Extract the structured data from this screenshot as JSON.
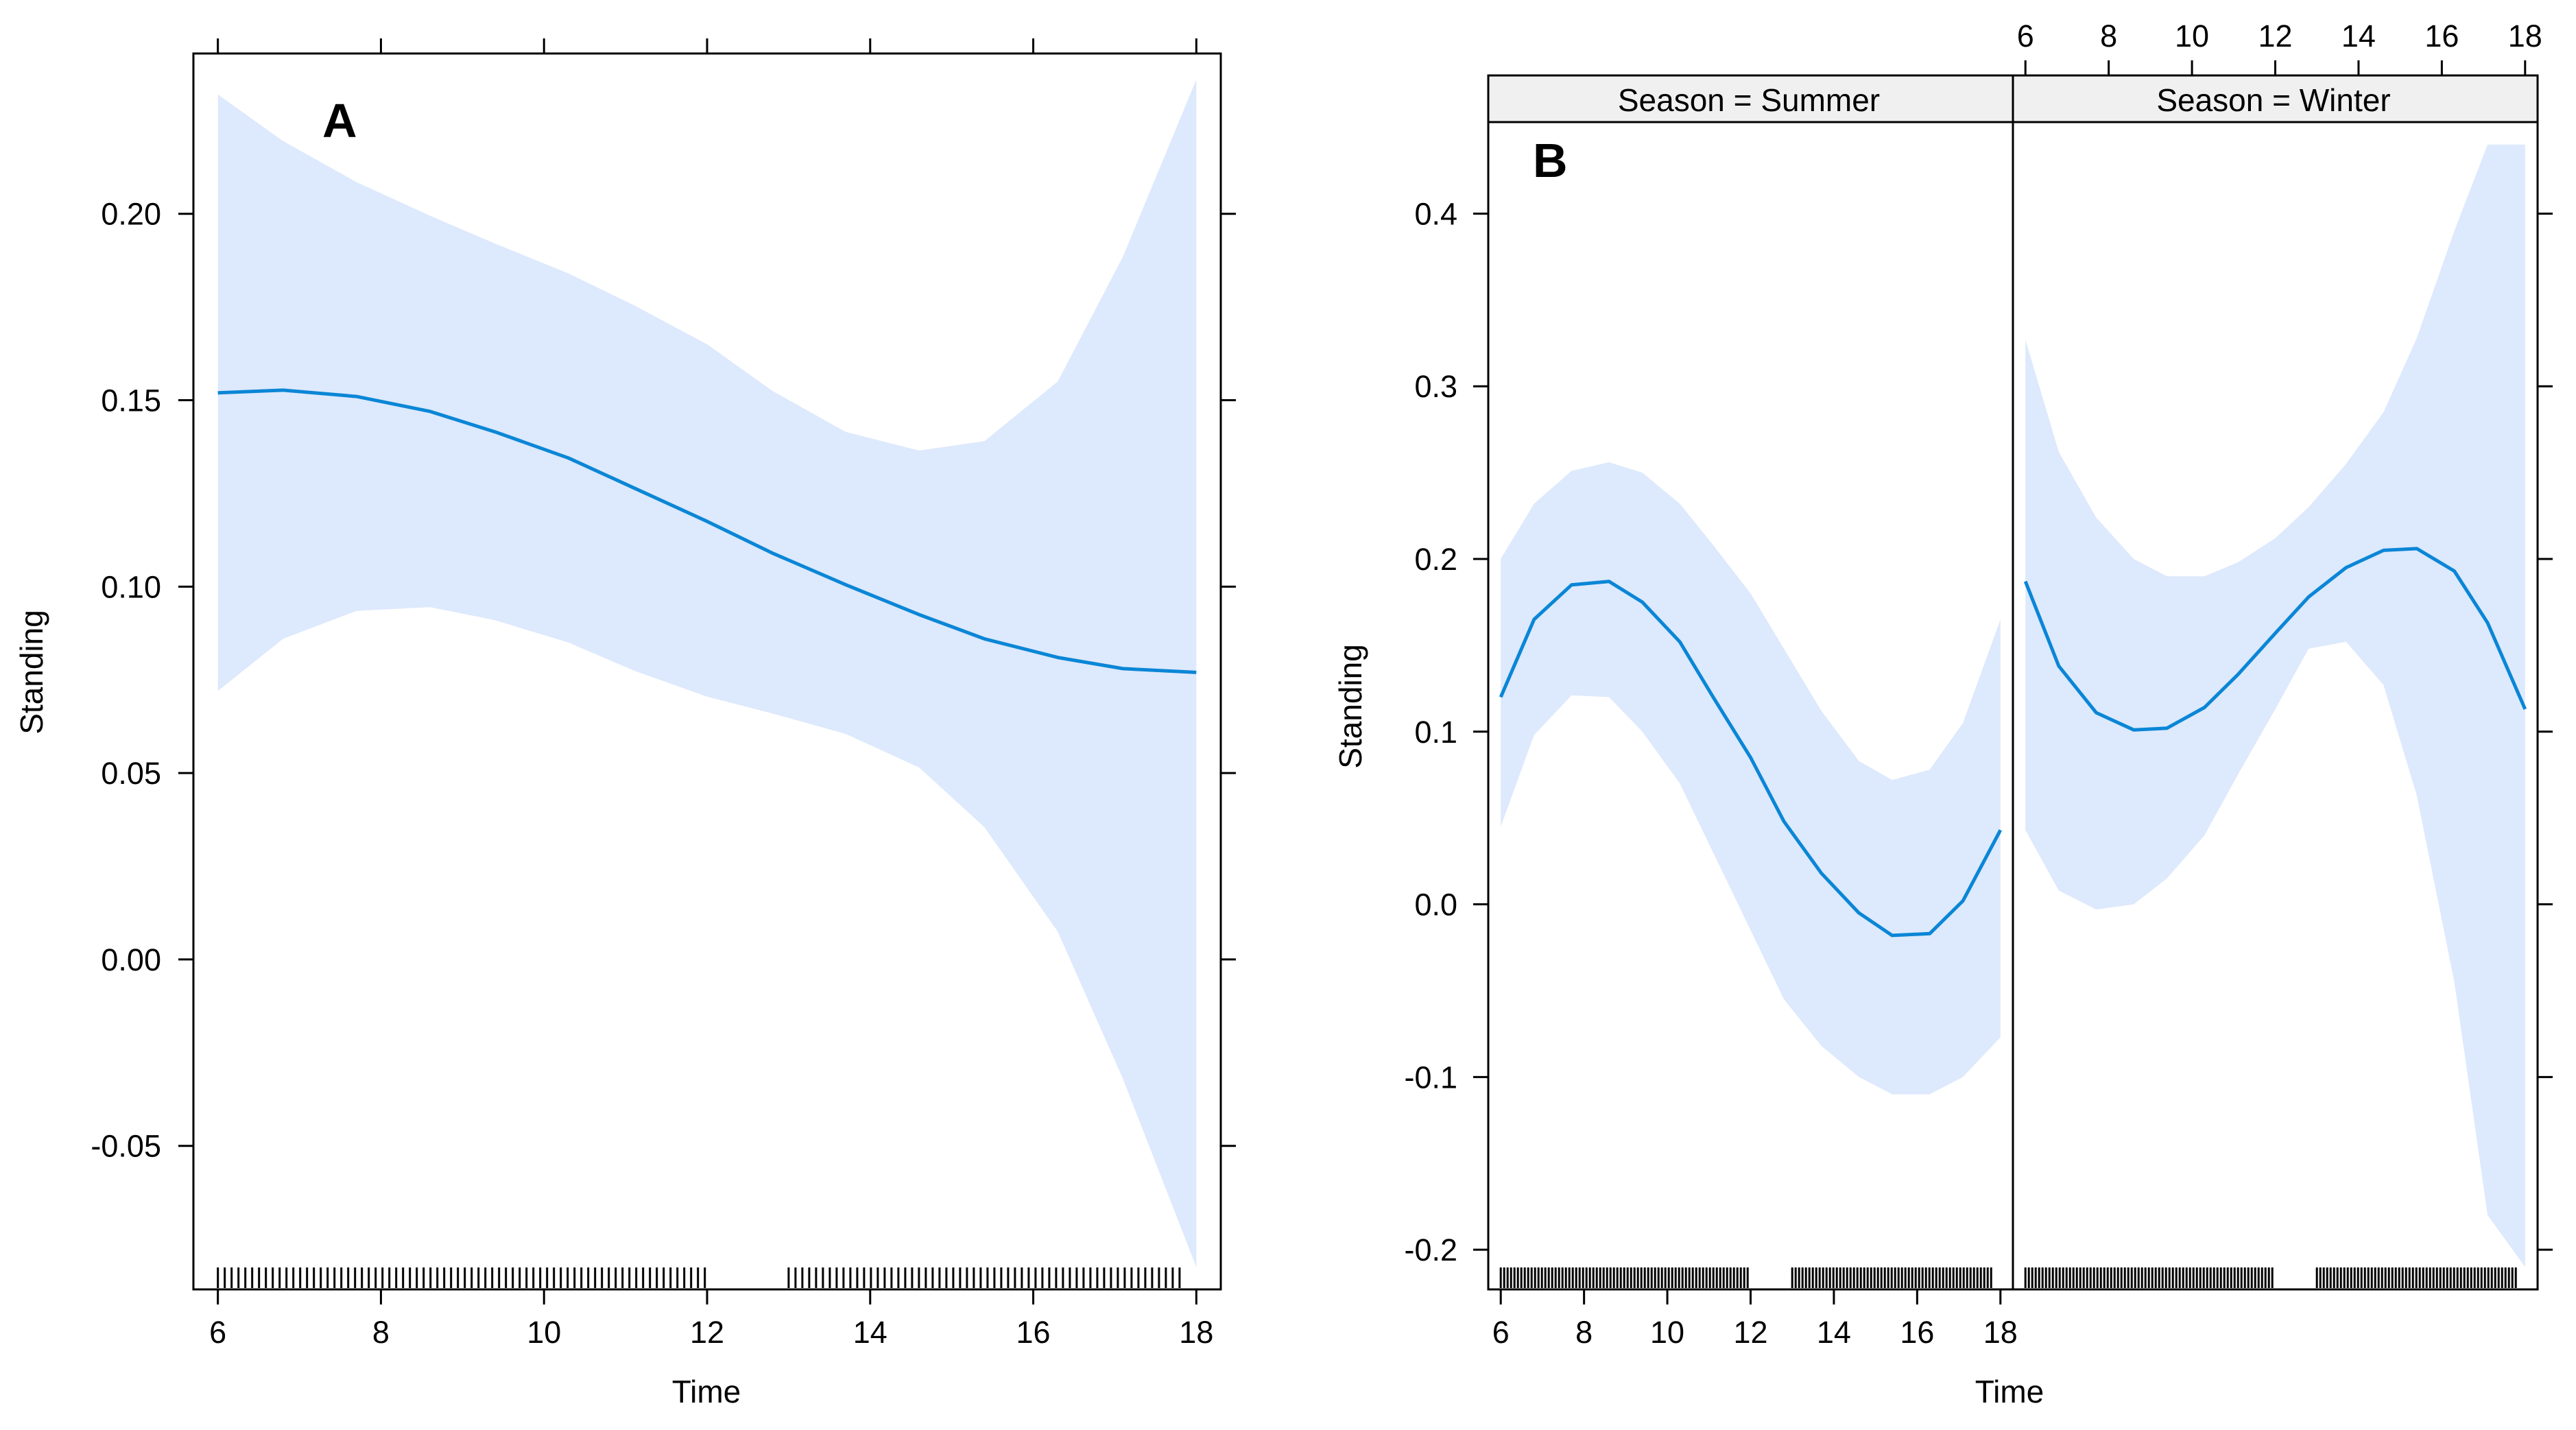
{
  "colors": {
    "line": "#0a86d6",
    "band": "#dde9fc",
    "strip": "#f0f0f0",
    "axis": "#000000"
  },
  "chart_data": [
    {
      "type": "line",
      "panel_label": "A",
      "xlabel": "Time",
      "ylabel": "Standing",
      "xlim": [
        5.7,
        18.3
      ],
      "ylim": [
        -0.0885,
        0.243
      ],
      "x_ticks": [
        6,
        8,
        10,
        12,
        14,
        16,
        18
      ],
      "x_tick_labels": [
        "6",
        "8",
        "10",
        "12",
        "14",
        "16",
        "18"
      ],
      "y_ticks": [
        -0.05,
        0.0,
        0.05,
        0.1,
        0.15,
        0.2
      ],
      "y_tick_labels": [
        "-0.05",
        "0.00",
        "0.05",
        "0.10",
        "0.15",
        "0.20"
      ],
      "series": [
        {
          "x": [
            6,
            6.8,
            7.7,
            8.6,
            9.4,
            10.3,
            11.1,
            12,
            12.8,
            13.7,
            14.6,
            15.4,
            16.3,
            17.1,
            18
          ],
          "fit": [
            0.152,
            0.1527,
            0.151,
            0.147,
            0.1415,
            0.1345,
            0.1265,
            0.1175,
            0.109,
            0.1005,
            0.0925,
            0.086,
            0.081,
            0.078,
            0.077
          ],
          "lower": [
            0.072,
            0.086,
            0.0935,
            0.0945,
            0.091,
            0.085,
            0.0775,
            0.0705,
            0.066,
            0.0605,
            0.0515,
            0.0355,
            0.0075,
            -0.032,
            -0.0825
          ],
          "upper": [
            0.232,
            0.2195,
            0.2085,
            0.1995,
            0.192,
            0.184,
            0.1755,
            0.165,
            0.1525,
            0.1415,
            0.1365,
            0.139,
            0.155,
            0.1885,
            0.236
          ]
        }
      ],
      "rug": [
        {
          "from": 6,
          "to": 12
        },
        {
          "from": 13,
          "to": 17.8
        }
      ]
    },
    {
      "type": "line",
      "panel_label": "B",
      "xlabel": "Time",
      "ylabel": "Standing",
      "xlim": [
        5.7,
        18.3
      ],
      "ylim": [
        -0.223,
        0.453
      ],
      "x_ticks": [
        6,
        8,
        10,
        12,
        14,
        16,
        18
      ],
      "x_tick_labels": [
        "6",
        "8",
        "10",
        "12",
        "14",
        "16",
        "18"
      ],
      "y_ticks": [
        -0.2,
        -0.1,
        0.0,
        0.1,
        0.2,
        0.3,
        0.4
      ],
      "y_tick_labels": [
        "-0.2",
        "-0.1",
        "0.0",
        "0.1",
        "0.2",
        "0.3",
        "0.4"
      ],
      "panels": [
        {
          "strip": "Season = Summer",
          "x": [
            6,
            6.8,
            7.7,
            8.6,
            9.4,
            10.3,
            11.1,
            12,
            12.8,
            13.7,
            14.6,
            15.4,
            16.3,
            17.1,
            18
          ],
          "fit": [
            0.12,
            0.165,
            0.185,
            0.187,
            0.175,
            0.152,
            0.12,
            0.085,
            0.048,
            0.018,
            -0.005,
            -0.018,
            -0.017,
            0.002,
            0.043
          ],
          "lower": [
            0.045,
            0.098,
            0.121,
            0.12,
            0.1,
            0.07,
            0.03,
            -0.015,
            -0.055,
            -0.082,
            -0.1,
            -0.11,
            -0.11,
            -0.1,
            -0.077
          ],
          "upper": [
            0.2,
            0.232,
            0.251,
            0.256,
            0.25,
            0.232,
            0.208,
            0.18,
            0.148,
            0.112,
            0.083,
            0.072,
            0.078,
            0.105,
            0.165
          ],
          "rug": [
            {
              "from": 6,
              "to": 12
            },
            {
              "from": 13,
              "to": 17.8
            }
          ]
        },
        {
          "strip": "Season = Winter",
          "x": [
            6,
            6.8,
            7.7,
            8.6,
            9.4,
            10.3,
            11.1,
            12,
            12.8,
            13.7,
            14.6,
            15.4,
            16.3,
            17.1,
            18
          ],
          "fit": [
            0.187,
            0.138,
            0.111,
            0.101,
            0.102,
            0.114,
            0.133,
            0.157,
            0.178,
            0.195,
            0.205,
            0.206,
            0.193,
            0.163,
            0.113
          ],
          "lower": [
            0.043,
            0.008,
            -0.003,
            0.0,
            0.015,
            0.04,
            0.075,
            0.113,
            0.148,
            0.152,
            0.127,
            0.063,
            -0.045,
            -0.18,
            -0.21
          ],
          "upper": [
            0.327,
            0.262,
            0.224,
            0.2,
            0.19,
            0.19,
            0.198,
            0.212,
            0.23,
            0.255,
            0.285,
            0.328,
            0.39,
            0.44,
            0.44
          ],
          "rug": [
            {
              "from": 6,
              "to": 12
            },
            {
              "from": 13,
              "to": 17.8
            }
          ]
        }
      ]
    }
  ]
}
